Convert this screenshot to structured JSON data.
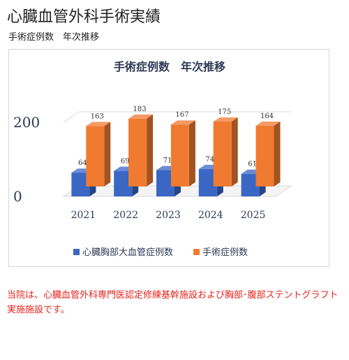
{
  "page": {
    "title": "心臓血管外科手術実績",
    "subtitle": "手術症例数　年次推移"
  },
  "chart_data": {
    "type": "bar",
    "title": "手術症例数　年次推移",
    "categories": [
      "2021",
      "2022",
      "2023",
      "2024",
      "2025"
    ],
    "series": [
      {
        "name": "心臓胸部大血管症例数",
        "values": [
          64,
          69,
          71,
          74,
          61
        ],
        "color": "#3a66c4"
      },
      {
        "name": "手術症例数",
        "values": [
          163,
          183,
          167,
          175,
          164
        ],
        "color": "#f07a30"
      }
    ],
    "y_ticks": [
      "0",
      "200"
    ],
    "ylim": [
      0,
      200
    ],
    "legend_position": "bottom",
    "grid": false,
    "style": "3d-clustered-column"
  },
  "notice": {
    "text": "当院は、心臓血管外科専門医認定修練基幹施設および胸部･腹部ステントグラフト実施施設です。"
  }
}
